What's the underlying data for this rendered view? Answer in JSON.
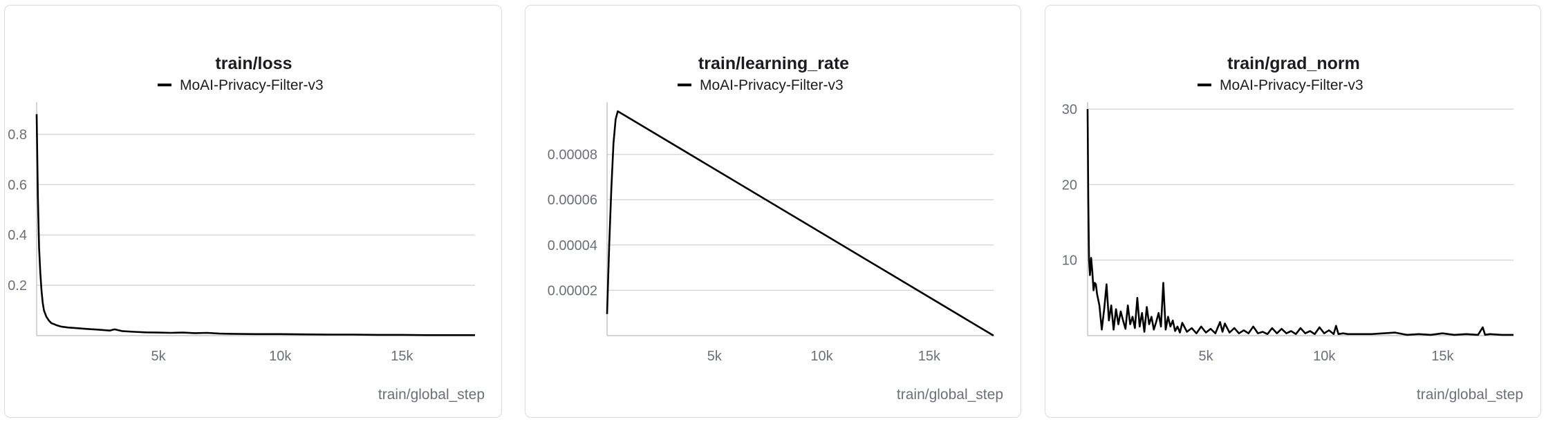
{
  "colors": {
    "series": "#000000",
    "grid": "#d6d8dc",
    "tick": "#6b6f77",
    "title": "#1a1c1f"
  },
  "chart_data": [
    {
      "type": "line",
      "title": "train/loss",
      "xlabel": "train/global_step",
      "ylabel": "",
      "legend": {
        "placement": "top-center",
        "entries": [
          "MoAI-Privacy-Filter-v3"
        ]
      },
      "grid": true,
      "xlim": [
        0,
        18000
      ],
      "ylim": [
        0,
        0.9
      ],
      "xticks": [
        5000,
        10000,
        15000
      ],
      "xtick_labels": [
        "5k",
        "10k",
        "15k"
      ],
      "yticks": [
        0.2,
        0.4,
        0.6,
        0.8
      ],
      "ytick_labels": [
        "0.2",
        "0.4",
        "0.6",
        "0.8"
      ],
      "series": [
        {
          "name": "MoAI-Privacy-Filter-v3",
          "x": [
            0,
            50,
            100,
            150,
            200,
            250,
            300,
            400,
            500,
            600,
            800,
            1000,
            1300,
            1600,
            2000,
            2500,
            3000,
            3200,
            3500,
            4000,
            4500,
            5000,
            5500,
            6000,
            6500,
            7000,
            7500,
            8000,
            9000,
            10000,
            11000,
            12000,
            13000,
            14000,
            15000,
            16000,
            17000,
            18000
          ],
          "y": [
            0.88,
            0.55,
            0.35,
            0.25,
            0.18,
            0.13,
            0.1,
            0.075,
            0.06,
            0.05,
            0.042,
            0.036,
            0.032,
            0.03,
            0.027,
            0.024,
            0.02,
            0.025,
            0.018,
            0.015,
            0.013,
            0.012,
            0.011,
            0.012,
            0.01,
            0.011,
            0.008,
            0.007,
            0.006,
            0.006,
            0.005,
            0.004,
            0.004,
            0.003,
            0.003,
            0.002,
            0.002,
            0.002
          ]
        }
      ]
    },
    {
      "type": "line",
      "title": "train/learning_rate",
      "xlabel": "train/global_step",
      "ylabel": "",
      "legend": {
        "placement": "top-center",
        "entries": [
          "MoAI-Privacy-Filter-v3"
        ]
      },
      "grid": true,
      "xlim": [
        0,
        18000
      ],
      "ylim": [
        0,
        0.0001
      ],
      "xticks": [
        5000,
        10000,
        15000
      ],
      "xtick_labels": [
        "5k",
        "10k",
        "15k"
      ],
      "yticks": [
        2e-05,
        4e-05,
        6e-05,
        8e-05
      ],
      "ytick_labels": [
        "0.00002",
        "0.00004",
        "0.00006",
        "0.00008"
      ],
      "series": [
        {
          "name": "MoAI-Privacy-Filter-v3",
          "x": [
            0,
            100,
            200,
            300,
            400,
            500,
            18000
          ],
          "y": [
            9.5e-06,
            4e-05,
            6.5e-05,
            8.5e-05,
            9.55e-05,
            9.906e-05,
            0.0
          ]
        }
      ]
    },
    {
      "type": "line",
      "title": "train/grad_norm",
      "xlabel": "train/global_step",
      "ylabel": "",
      "legend": {
        "placement": "top-center",
        "entries": [
          "MoAI-Privacy-Filter-v3"
        ]
      },
      "grid": true,
      "xlim": [
        0,
        18000
      ],
      "ylim": [
        0,
        30
      ],
      "xticks": [
        5000,
        10000,
        15000
      ],
      "xtick_labels": [
        "5k",
        "10k",
        "15k"
      ],
      "yticks": [
        10,
        20,
        30
      ],
      "ytick_labels": [
        "10",
        "20",
        "30"
      ],
      "series": [
        {
          "name": "MoAI-Privacy-Filter-v3",
          "x": [
            0,
            30,
            60,
            100,
            150,
            200,
            250,
            300,
            350,
            400,
            500,
            600,
            700,
            800,
            900,
            1000,
            1100,
            1200,
            1300,
            1400,
            1500,
            1600,
            1700,
            1800,
            1900,
            2000,
            2100,
            2200,
            2300,
            2400,
            2500,
            2600,
            2700,
            2800,
            2900,
            3000,
            3100,
            3200,
            3300,
            3400,
            3500,
            3600,
            3700,
            3800,
            3900,
            4000,
            4200,
            4400,
            4600,
            4800,
            5000,
            5200,
            5400,
            5600,
            5700,
            5800,
            6000,
            6200,
            6400,
            6600,
            6800,
            7000,
            7200,
            7400,
            7600,
            7800,
            8000,
            8200,
            8400,
            8600,
            8800,
            9000,
            9200,
            9400,
            9600,
            9800,
            10000,
            10200,
            10400,
            10500,
            10600,
            10800,
            11000,
            11500,
            12000,
            12500,
            13000,
            13500,
            14000,
            14500,
            15000,
            15500,
            16000,
            16500,
            16700,
            16800,
            17000,
            17500,
            18000
          ],
          "y": [
            30,
            18,
            10,
            8,
            10.3,
            8.5,
            6,
            7,
            6.8,
            5.5,
            4,
            0.8,
            3.5,
            6.8,
            2,
            4,
            0.8,
            3.5,
            1.5,
            3.2,
            2,
            0.9,
            4,
            1.5,
            2.5,
            1,
            5,
            1.2,
            3,
            0.5,
            3.8,
            1.5,
            2.5,
            0.8,
            1.8,
            3,
            1.2,
            7,
            0.8,
            2.5,
            1.2,
            2,
            0.6,
            1.2,
            0.4,
            1.7,
            0.5,
            1,
            0.3,
            1.2,
            0.4,
            0.9,
            0.3,
            1.8,
            0.5,
            1.6,
            0.4,
            1,
            0.3,
            0.7,
            0.3,
            1.2,
            0.3,
            0.5,
            0.2,
            1,
            0.3,
            0.9,
            0.3,
            0.6,
            0.2,
            1,
            0.3,
            0.6,
            0.2,
            1.1,
            0.3,
            0.7,
            0.2,
            1.3,
            0.2,
            0.3,
            0.2,
            0.2,
            0.2,
            0.3,
            0.4,
            0.1,
            0.2,
            0.1,
            0.3,
            0.1,
            0.2,
            0.1,
            1.1,
            0.1,
            0.2,
            0.1,
            0.1
          ]
        }
      ]
    }
  ]
}
